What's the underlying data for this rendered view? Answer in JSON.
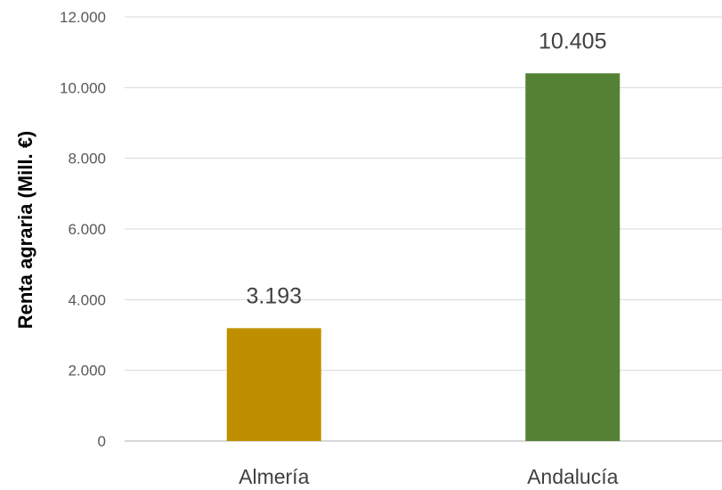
{
  "chart_data": {
    "type": "bar",
    "title": "",
    "xlabel": "",
    "ylabel": "Renta agraria (Mill. €)",
    "categories": [
      "Almería",
      "Andalucía"
    ],
    "values": [
      3193,
      10405
    ],
    "value_labels": [
      "3.193",
      "10.405"
    ],
    "colors": [
      "#bf8f00",
      "#548235"
    ],
    "ylim": [
      0,
      12000
    ],
    "yticks": [
      0,
      2000,
      4000,
      6000,
      8000,
      10000,
      12000
    ],
    "ytick_labels": [
      "0",
      "2.000",
      "4.000",
      "6.000",
      "8.000",
      "10.000",
      "12.000"
    ],
    "grid": true,
    "legend": "none"
  }
}
